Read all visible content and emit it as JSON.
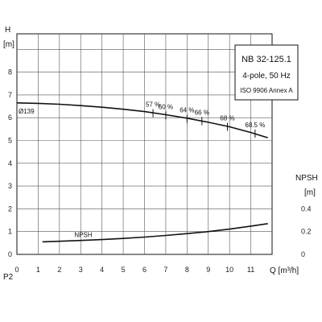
{
  "chart_data": {
    "type": "line",
    "left_axis": {
      "label": "H",
      "unit": "[m]",
      "range": [
        0,
        8
      ],
      "ticks": [
        "0",
        "1",
        "2",
        "3",
        "4",
        "5",
        "6",
        "7",
        "8"
      ]
    },
    "right_axis": {
      "label": "NPSH",
      "unit": "[m]",
      "range": [
        0,
        0.4
      ],
      "ticks": [
        "0",
        "0.2",
        "0.4"
      ]
    },
    "x_axis": {
      "label": "Q [m³/h]",
      "range": [
        0,
        12
      ],
      "ticks": [
        "0",
        "1",
        "2",
        "3",
        "4",
        "5",
        "6",
        "7",
        "8",
        "9",
        "10",
        "11"
      ]
    },
    "p2_label": "P2",
    "grid": true,
    "series": [
      {
        "name": "Ø139",
        "axis": "left",
        "x": [
          0,
          1,
          2,
          3,
          4,
          5,
          6,
          7,
          8,
          9,
          10,
          11,
          11.8
        ],
        "y": [
          6.65,
          6.63,
          6.59,
          6.53,
          6.46,
          6.37,
          6.27,
          6.13,
          5.98,
          5.8,
          5.6,
          5.35,
          5.12
        ]
      },
      {
        "name": "NPSH",
        "axis": "right",
        "x": [
          1.2,
          2,
          3,
          4,
          5,
          6,
          7,
          8,
          9,
          10,
          11,
          11.8
        ],
        "y": [
          0.11,
          0.115,
          0.122,
          0.13,
          0.14,
          0.152,
          0.166,
          0.182,
          0.2,
          0.222,
          0.248,
          0.27
        ]
      }
    ],
    "efficiency_marks": [
      {
        "label": "57 %",
        "x": 6.4,
        "y": 6.2
      },
      {
        "label": "60 %",
        "x": 7.0,
        "y": 6.1
      },
      {
        "label": "64 %",
        "x": 8.0,
        "y": 5.95
      },
      {
        "label": "66 %",
        "x": 8.7,
        "y": 5.85
      },
      {
        "label": "68 %",
        "x": 9.9,
        "y": 5.6
      },
      {
        "label": "68.5 %",
        "x": 11.2,
        "y": 5.3
      }
    ],
    "info_box": {
      "model": "NB 32-125.1",
      "speed": "4-pole, 50 Hz",
      "standard": "ISO 9906 Annex A"
    }
  }
}
